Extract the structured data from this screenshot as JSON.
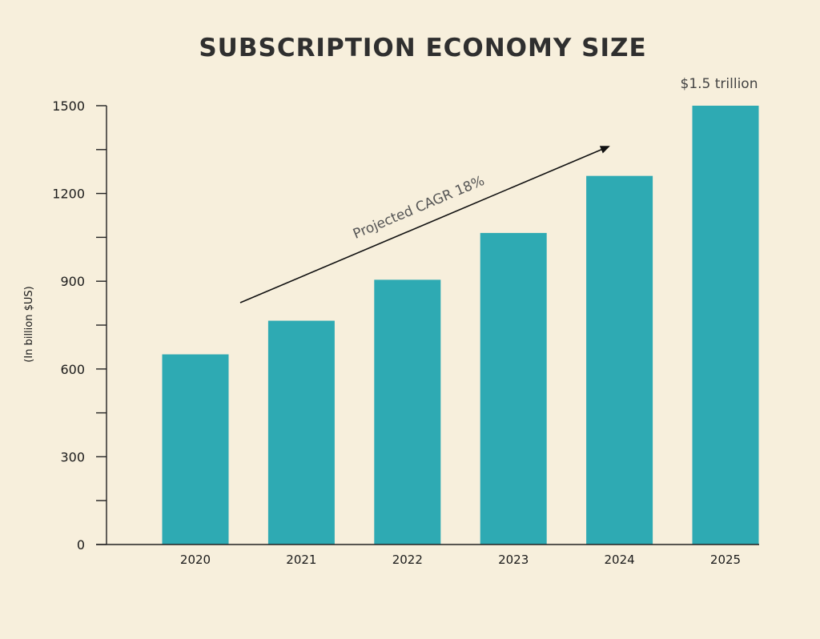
{
  "chart_data": {
    "type": "bar",
    "title": "SUBSCRIPTION ECONOMY SIZE",
    "xlabel": "",
    "ylabel": "(In billion $US)",
    "categories": [
      "2020",
      "2021",
      "2022",
      "2023",
      "2024",
      "2025"
    ],
    "values": [
      650,
      765,
      905,
      1065,
      1260,
      1500
    ],
    "ylim": [
      0,
      1500
    ],
    "yticks": [
      0,
      300,
      600,
      900,
      1200,
      1500
    ],
    "ytick_labels": [
      "0",
      "300",
      "600",
      "900",
      "1200",
      "1500"
    ],
    "annotations": {
      "top_label": "$1.5 trillion",
      "trend_label": "Projected CAGR 18%"
    },
    "bar_color": "#2eaab3",
    "grid": false,
    "legend": "none"
  }
}
